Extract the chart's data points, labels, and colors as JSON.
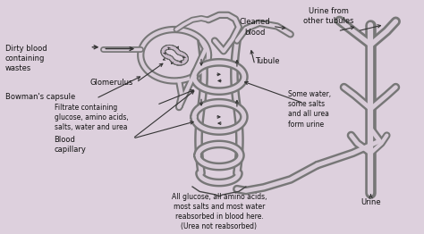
{
  "bg_color": "#ddd0dd",
  "line_color": "#444444",
  "tube_outer": "#888888",
  "tube_inner": "#d8ccd8",
  "labels": {
    "dirty_blood": "Dirty blood\ncontaining\nwastes",
    "glomerulus": "Glomerulus",
    "bowmans": "Bowman's capsule",
    "filtrate": "Filtrate containing\nglucose, amino acids,\nsalts, water and urea",
    "blood_cap": "Blood\ncapillary",
    "cleaned": "Cleaned\nblood",
    "tubule": "Tubule",
    "some_water": "Some water,\nsome salts\nand all urea\nform urine",
    "urine_from": "Urine from\nother tubules",
    "all_glucose": "All glucose, all amino acids,\nmost salts and most water\nreabsorbed in blood here.\n(Urea not reabsorbed)",
    "urine": "Urine"
  },
  "fontsize": 6.0
}
